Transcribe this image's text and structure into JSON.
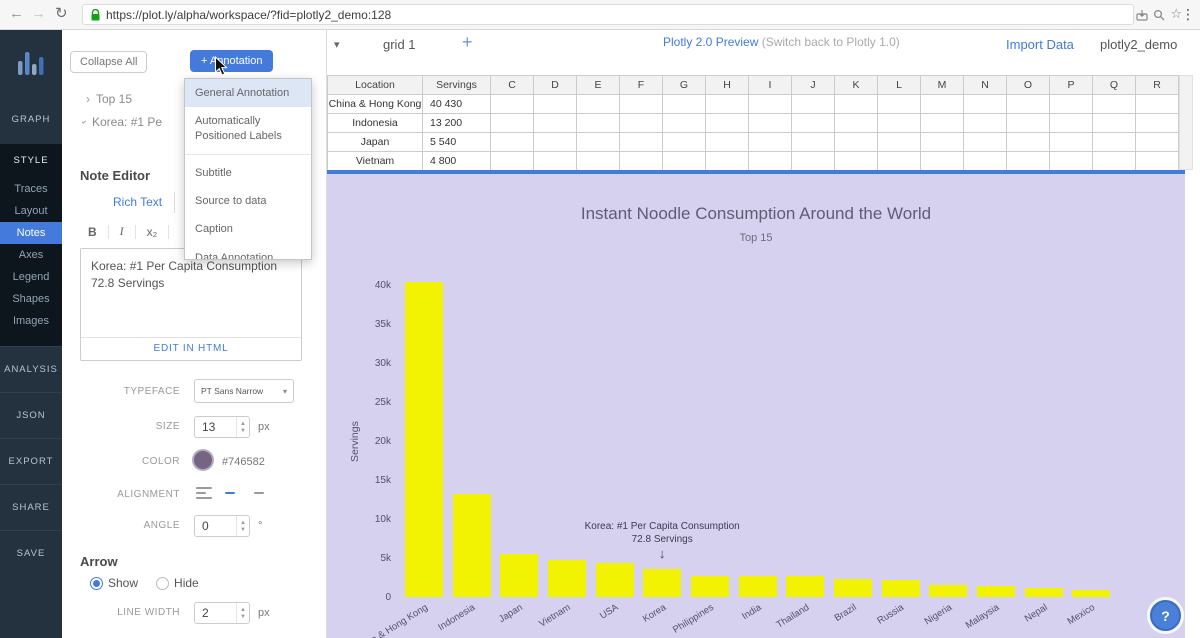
{
  "browser": {
    "url": "https://plot.ly/alpha/workspace/?fid=plotly2_demo:128"
  },
  "sidebar": {
    "graph_label": "GRAPH",
    "style_label": "STYLE",
    "style_subitems": [
      {
        "label": "Traces",
        "active": false
      },
      {
        "label": "Layout",
        "active": false
      },
      {
        "label": "Notes",
        "active": true
      },
      {
        "label": "Axes",
        "active": false
      },
      {
        "label": "Legend",
        "active": false
      },
      {
        "label": "Shapes",
        "active": false
      },
      {
        "label": "Images",
        "active": false
      }
    ],
    "bottom_items": [
      "ANALYSIS",
      "JSON",
      "EXPORT",
      "SHARE",
      "SAVE"
    ]
  },
  "annotation_panel": {
    "collapse_all_label": "Collapse All",
    "add_annotation_label": "+ Annotation",
    "tree_item_collapsed": "Top 15",
    "tree_item_expanded": "Korea: #1 Pe",
    "note_editor_title": "Note Editor",
    "rich_text_tab": "Rich Text",
    "toolbar_bold": "B",
    "toolbar_italic": "I",
    "toolbar_subscript": "x₂",
    "note_text_line1": "Korea: #1 Per Capita Consumption",
    "note_text_line2": "72.8 Servings",
    "edit_in_html_label": "EDIT IN HTML",
    "fields": {
      "typeface_label": "TYPEFACE",
      "typeface_value": "PT Sans Narrow",
      "size_label": "SIZE",
      "size_value": "13",
      "size_unit": "px",
      "color_label": "COLOR",
      "color_value": "#746582",
      "alignment_label": "ALIGNMENT",
      "angle_label": "ANGLE",
      "angle_value": "0",
      "angle_unit": "°"
    },
    "arrow_section": {
      "title": "Arrow",
      "show_label": "Show",
      "hide_label": "Hide",
      "line_width_label": "LINE WIDTH",
      "line_width_value": "2",
      "line_width_unit": "px"
    }
  },
  "annotation_dropdown": {
    "items": [
      {
        "label": "General Annotation",
        "highlighted": true
      },
      {
        "label": "Automatically Positioned Labels",
        "highlighted": false
      },
      {
        "label": "Subtitle",
        "highlighted": false
      },
      {
        "label": "Source to data",
        "highlighted": false
      },
      {
        "label": "Caption",
        "highlighted": false
      },
      {
        "label": "Data Annotation",
        "highlighted": false
      }
    ]
  },
  "workspace_topbar": {
    "grid_tab_label": "grid 1",
    "add_tab_label": "+",
    "preview_link": "Plotly 2.0 Preview",
    "switch_back_text": "(Switch back to Plotly 1.0)",
    "import_data_label": "Import Data",
    "filename": "plotly2_demo"
  },
  "data_grid": {
    "columns": [
      "Location",
      "Servings",
      "C",
      "D",
      "E",
      "F",
      "G",
      "H",
      "I",
      "J",
      "K",
      "L",
      "M",
      "N",
      "O",
      "P",
      "Q",
      "R"
    ],
    "rows": [
      [
        "China & Hong Kong",
        "40 430"
      ],
      [
        "Indonesia",
        "13 200"
      ],
      [
        "Japan",
        "5 540"
      ],
      [
        "Vietnam",
        "4 800"
      ]
    ]
  },
  "chart_data": {
    "type": "bar",
    "title": "Instant Noodle Consumption Around the World",
    "subtitle": "Top 15",
    "ylabel": "Servings",
    "categories": [
      "China & Hong Kong",
      "Indonesia",
      "Japan",
      "Vietnam",
      "USA",
      "Korea",
      "Philippines",
      "India",
      "Thailand",
      "Brazil",
      "Russia",
      "Nigeria",
      "Malaysia",
      "Nepal",
      "Mexico"
    ],
    "values": [
      40430,
      13200,
      5540,
      4800,
      4350,
      3630,
      2720,
      2700,
      2650,
      2370,
      2120,
      1520,
      1350,
      1110,
      890
    ],
    "ylim": [
      0,
      41000
    ],
    "ytick_step": 5000,
    "ytick_labels": [
      "0",
      "5k",
      "10k",
      "15k",
      "20k",
      "25k",
      "30k",
      "35k",
      "40k"
    ],
    "grid": "off",
    "legend": "off",
    "bar_color": "#f1f303",
    "plot_background": "#d5d1ee",
    "annotation": {
      "line1": "Korea: #1 Per Capita Consumption",
      "line2": "72.8 Servings",
      "arrow": "↓",
      "target_category": "Korea"
    }
  },
  "help_button_label": "?",
  "colors": {
    "accent_blue": "#447adb",
    "bar_yellow": "#f1f303",
    "chart_background": "#d5d1ee",
    "note_color_swatch": "#746582"
  }
}
